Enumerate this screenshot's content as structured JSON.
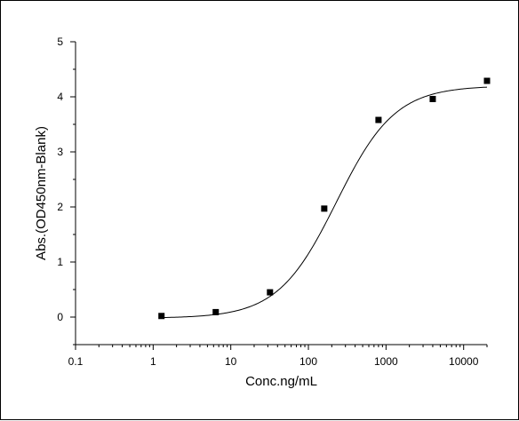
{
  "chart_data": {
    "type": "scatter",
    "xscale": "log",
    "xlabel": "Conc.ng/mL",
    "ylabel": "Abs.(OD450nm-Blank)",
    "xlim": [
      0.1,
      20000
    ],
    "ylim": [
      -0.5,
      5
    ],
    "xticks": [
      {
        "value": 0.1,
        "label": "0.1"
      },
      {
        "value": 1,
        "label": "1"
      },
      {
        "value": 10,
        "label": "10"
      },
      {
        "value": 100,
        "label": "100"
      },
      {
        "value": 1000,
        "label": "1000"
      },
      {
        "value": 10000,
        "label": "10000"
      }
    ],
    "yticks": [
      {
        "value": 0,
        "label": "0"
      },
      {
        "value": 1,
        "label": "1"
      },
      {
        "value": 2,
        "label": "2"
      },
      {
        "value": 3,
        "label": "3"
      },
      {
        "value": 4,
        "label": "4"
      },
      {
        "value": 5,
        "label": "5"
      }
    ],
    "grid": false,
    "series": [
      {
        "points": [
          {
            "x": 1.28,
            "y": 0.02
          },
          {
            "x": 6.4,
            "y": 0.09
          },
          {
            "x": 32,
            "y": 0.45
          },
          {
            "x": 160,
            "y": 1.97
          },
          {
            "x": 800,
            "y": 3.58
          },
          {
            "x": 4000,
            "y": 3.96
          },
          {
            "x": 20000,
            "y": 4.29
          }
        ],
        "color": "#000000",
        "marker": "square"
      }
    ],
    "fit": {
      "type": "4PL",
      "bottom": -0.02,
      "top": 4.2,
      "ec50": 230,
      "hill": 1.15,
      "x_range": [
        1.28,
        20000
      ],
      "color": "#000000"
    }
  }
}
